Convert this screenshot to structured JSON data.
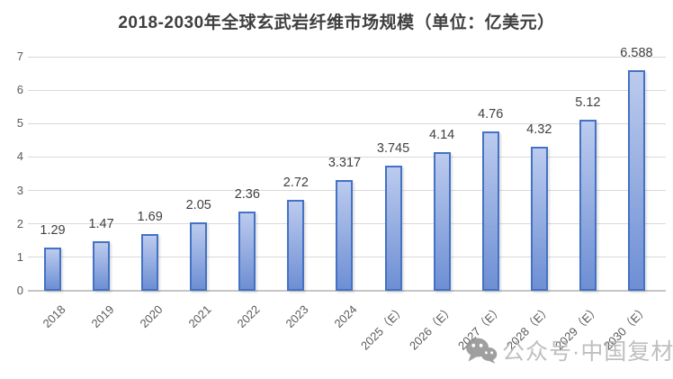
{
  "chart_data": {
    "type": "bar",
    "title": "2018-2030年全球玄武岩纤维市场规模（单位：亿美元）",
    "xlabel": "",
    "ylabel": "",
    "categories": [
      "2018",
      "2019",
      "2020",
      "2021",
      "2022",
      "2023",
      "2024",
      "2025（E）",
      "2026（E）",
      "2027（E）",
      "2028（E）",
      "2029（E）",
      "2030（E）"
    ],
    "values": [
      1.29,
      1.47,
      1.69,
      2.05,
      2.36,
      2.72,
      3.317,
      3.745,
      4.14,
      4.76,
      4.32,
      5.12,
      6.588
    ],
    "value_labels": [
      "1.29",
      "1.47",
      "1.69",
      "2.05",
      "2.36",
      "2.72",
      "3.317",
      "3.745",
      "4.14",
      "4.76",
      "4.32",
      "5.12",
      "6.588"
    ],
    "ylim": [
      0,
      7
    ],
    "y_ticks": [
      0,
      1,
      2,
      3,
      4,
      5,
      6,
      7
    ],
    "grid": true,
    "legend": false,
    "colors": {
      "bar_fill_top": "#bccbee",
      "bar_fill_bottom": "#6e8fd4",
      "bar_border": "#4472c4",
      "gridline": "#d9d9d9",
      "axis_line": "#c6c6c6",
      "title_text": "#3f3f3f",
      "data_label_text": "#404040",
      "axis_text": "#595959"
    }
  },
  "watermark": {
    "icon": "wechat-icon",
    "text": "公众号·中国复材",
    "text_color": "#b5b5b5",
    "icon_color": "#8f8f8f"
  }
}
